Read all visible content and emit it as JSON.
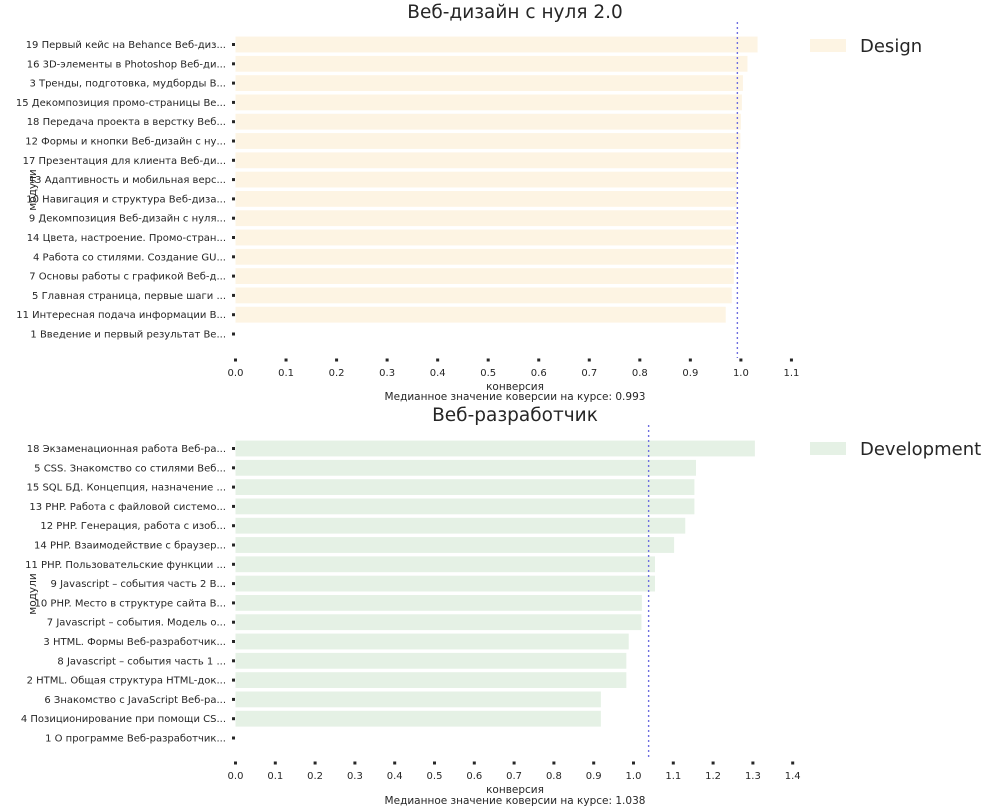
{
  "chart_data": [
    {
      "type": "bar",
      "orientation": "horizontal",
      "title": "Веб-дизайн с нуля 2.0",
      "ylabel": "модули",
      "xlabel": "конверсия",
      "note": "Медианное значение коверсии на курсе: 0.993",
      "legend": "Design",
      "legend_position": "right",
      "color": "#fdf4e3",
      "median": 0.993,
      "median_color": "#6f6fe0",
      "grid": false,
      "xlim": [
        0,
        1.1
      ],
      "xticks": [
        "0.0",
        "0.1",
        "0.2",
        "0.3",
        "0.4",
        "0.5",
        "0.6",
        "0.7",
        "0.8",
        "0.9",
        "1.0",
        "1.1"
      ],
      "categories": [
        "19 Первый кейс на Behance Веб-диз...",
        "16 3D-элементы в Photoshop Веб-ди...",
        "3 Тренды, подготовка, мудборды В...",
        "15 Декомпозиция промо-страницы Ве...",
        "18 Передача проекта в верстку Веб...",
        "12 Формы и кнопки Веб-дизайн с ну...",
        "17 Презентация для клиента Веб-ди...",
        "13  Адаптивность и мобильная верс...",
        "10 Навигация и структура Веб-диза...",
        "9 Декомпозиция Веб-дизайн с нуля...",
        "14 Цвета, настроение. Промо-стран...",
        "4 Работа со стилями. Создание GU...",
        "7 Основы работы с графикой Веб-д...",
        "5 Главная страница, первые шаги ...",
        "11 Интересная подача информации В...",
        "1 Введение и первый результат Ве..."
      ],
      "values": [
        1.033,
        1.013,
        1.004,
        1.002,
        1.0,
        0.999,
        0.994,
        0.992,
        0.992,
        0.991,
        0.99,
        0.988,
        0.986,
        0.982,
        0.97,
        0
      ]
    },
    {
      "type": "bar",
      "orientation": "horizontal",
      "title": "Веб-разработчик",
      "ylabel": "модули",
      "xlabel": "конверсия",
      "note": "Медианное значение коверсии на курсе: 1.038",
      "legend": "Development",
      "legend_position": "right",
      "color": "#e5f1e5",
      "median": 1.038,
      "median_color": "#6f6fe0",
      "grid": false,
      "xlim": [
        0,
        1.4
      ],
      "xticks": [
        "0.0",
        "0.1",
        "0.2",
        "0.3",
        "0.4",
        "0.5",
        "0.6",
        "0.7",
        "0.8",
        "0.9",
        "1.0",
        "1.1",
        "1.2",
        "1.3",
        "1.4"
      ],
      "categories": [
        "18 Экзаменационная работа  Веб-ра...",
        "5 CSS. Знакомство со стилями Веб...",
        "15 SQL БД. Концепция, назначение ...",
        "13 PHP. Работа с файловой системо...",
        "12 PHP. Генерация, работа  с изоб...",
        "14 PHP. Взаимодействие  с браузер...",
        "11 PHP. Пользовательские функции ...",
        "9 Javascript – события часть 2 В...",
        "10 PHP. Место в структуре сайта В...",
        "7 Javascript – события. Модель о...",
        "3 HTML. Формы Веб-разработчик...",
        "8 Javascript – события часть 1  ...",
        "2 HTML. Общая структура HTML-док...",
        "6 Знакомство с JavaScript Веб-ра...",
        "4 Позиционирование при помощи CS...",
        "1 О программе Веб-разработчик..."
      ],
      "values": [
        1.305,
        1.157,
        1.153,
        1.153,
        1.13,
        1.102,
        1.054,
        1.054,
        1.021,
        1.02,
        0.988,
        0.982,
        0.982,
        0.918,
        0.918,
        0
      ]
    }
  ]
}
